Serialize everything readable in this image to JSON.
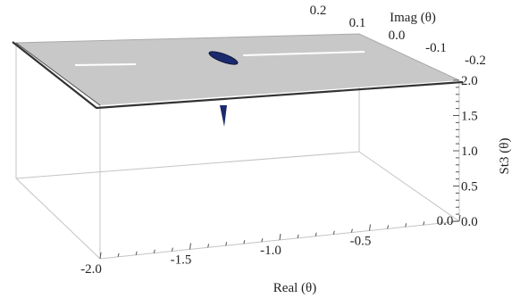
{
  "chart_data": {
    "type": "surface3d",
    "title": "",
    "xlabel": "Real (θ)",
    "ylabel": "Imag (θ)",
    "zlabel": "St3 (θ)",
    "xlim": [
      -2.0,
      0.0
    ],
    "ylim": [
      -0.2,
      0.2
    ],
    "zlim": [
      0.0,
      2.0
    ],
    "x_ticks": [
      "-2.0",
      "-1.5",
      "-1.0",
      "-0.5",
      "0.0"
    ],
    "y_ticks": [
      "0.2",
      "0.1",
      "0.0",
      "-0.1",
      "-0.2"
    ],
    "z_ticks": [
      "0.0",
      "0.5",
      "1.0",
      "1.5",
      "2.0"
    ],
    "surface_level": 2.0,
    "surface_color": "#c8c8c8",
    "feature_color": "#1a2a6c",
    "features": [
      {
        "kind": "stability-boundary",
        "real": -0.95,
        "imag": 0.0
      },
      {
        "kind": "spike",
        "real": -1.55,
        "imag": -0.15
      }
    ]
  }
}
